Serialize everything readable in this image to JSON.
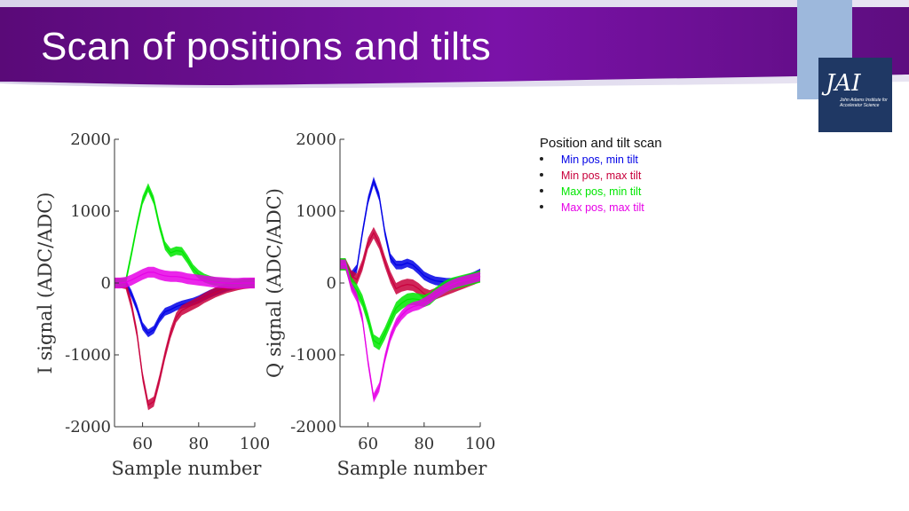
{
  "slide": {
    "title": "Scan of positions and tilts",
    "colors": {
      "header_dark": "#5a0a78",
      "header_mid": "#7a12a8",
      "accent_blue": "#9db8dc",
      "logo_bg": "#1f3864"
    }
  },
  "logo": {
    "text": "JAI",
    "subtext": "John Adams Institute for Accelerator Science"
  },
  "legend_panel": {
    "title": "Position and tilt scan",
    "items": [
      {
        "label": "Min pos, min tilt",
        "color": "#0000e6"
      },
      {
        "label": "Min pos, max tilt",
        "color": "#c8003c"
      },
      {
        "label": "Max pos, min tilt",
        "color": "#00e600"
      },
      {
        "label": "Max pos, max tilt",
        "color": "#e600e6"
      }
    ]
  },
  "chart_data": [
    {
      "type": "line",
      "xlabel": "Sample number",
      "ylabel": "I signal (ADC/ADC)",
      "xlim": [
        50,
        100
      ],
      "ylim": [
        -2000,
        2000
      ],
      "xticks": [
        "60",
        "80",
        "100"
      ],
      "yticks": [
        "2000",
        "1000",
        "0",
        "-1000",
        "-2000"
      ],
      "x": [
        50,
        52,
        54,
        56,
        58,
        60,
        62,
        64,
        66,
        68,
        70,
        72,
        74,
        76,
        78,
        80,
        82,
        84,
        86,
        88,
        90,
        92,
        94,
        96,
        98,
        100
      ],
      "series": [
        {
          "color": "#0000e6",
          "band": 110,
          "values": [
            0,
            0,
            -10,
            -150,
            -350,
            -600,
            -700,
            -650,
            -500,
            -400,
            -370,
            -330,
            -300,
            -280,
            -260,
            -230,
            -190,
            -150,
            -120,
            -90,
            -60,
            -40,
            -20,
            -5,
            0,
            0
          ]
        },
        {
          "color": "#c8003c",
          "band": 140,
          "values": [
            0,
            0,
            -15,
            -300,
            -700,
            -1300,
            -1700,
            -1650,
            -1350,
            -1000,
            -700,
            -480,
            -380,
            -340,
            -300,
            -260,
            -210,
            -170,
            -130,
            -100,
            -70,
            -50,
            -30,
            -15,
            -5,
            0
          ]
        },
        {
          "color": "#00e600",
          "band": 120,
          "values": [
            0,
            0,
            20,
            400,
            800,
            1150,
            1330,
            1150,
            800,
            520,
            420,
            450,
            440,
            330,
            200,
            120,
            70,
            40,
            20,
            10,
            5,
            0,
            0,
            0,
            0,
            0
          ]
        },
        {
          "color": "#e600e6",
          "band": 150,
          "values": [
            0,
            0,
            10,
            40,
            80,
            120,
            150,
            150,
            120,
            100,
            90,
            90,
            80,
            60,
            50,
            40,
            30,
            20,
            10,
            5,
            0,
            -5,
            -5,
            0,
            0,
            0
          ]
        }
      ]
    },
    {
      "type": "line",
      "xlabel": "Sample number",
      "ylabel": "Q signal (ADC/ADC)",
      "xlim": [
        50,
        100
      ],
      "ylim": [
        -2000,
        2000
      ],
      "xticks": [
        "60",
        "80",
        "100"
      ],
      "yticks": [
        "2000",
        "1000",
        "0",
        "-1000",
        "-2000"
      ],
      "x": [
        50,
        52,
        54,
        56,
        58,
        60,
        62,
        64,
        66,
        68,
        70,
        72,
        74,
        76,
        78,
        80,
        82,
        84,
        86,
        88,
        90,
        92,
        94,
        96,
        98,
        100
      ],
      "series": [
        {
          "color": "#0000e6",
          "band": 120,
          "values": [
            260,
            260,
            100,
            200,
            700,
            1150,
            1420,
            1200,
            700,
            350,
            250,
            250,
            280,
            250,
            180,
            100,
            60,
            30,
            20,
            10,
            10,
            20,
            40,
            70,
            100,
            140
          ]
        },
        {
          "color": "#c8003c",
          "band": 160,
          "values": [
            260,
            260,
            100,
            50,
            250,
            550,
            700,
            550,
            300,
            80,
            -80,
            -40,
            -20,
            -30,
            -80,
            -150,
            -180,
            -150,
            -120,
            -90,
            -60,
            -30,
            0,
            30,
            60,
            100
          ]
        },
        {
          "color": "#00e600",
          "band": 170,
          "values": [
            260,
            260,
            0,
            -100,
            -250,
            -500,
            -800,
            -850,
            -700,
            -520,
            -350,
            -280,
            -230,
            -220,
            -230,
            -250,
            -220,
            -150,
            -90,
            -40,
            -10,
            10,
            30,
            50,
            70,
            90
          ]
        },
        {
          "color": "#e600e6",
          "band": 130,
          "values": [
            260,
            260,
            -50,
            -200,
            -500,
            -1100,
            -1600,
            -1450,
            -1050,
            -750,
            -560,
            -450,
            -370,
            -330,
            -310,
            -270,
            -220,
            -160,
            -110,
            -60,
            -20,
            10,
            30,
            50,
            70,
            90
          ]
        }
      ]
    }
  ]
}
